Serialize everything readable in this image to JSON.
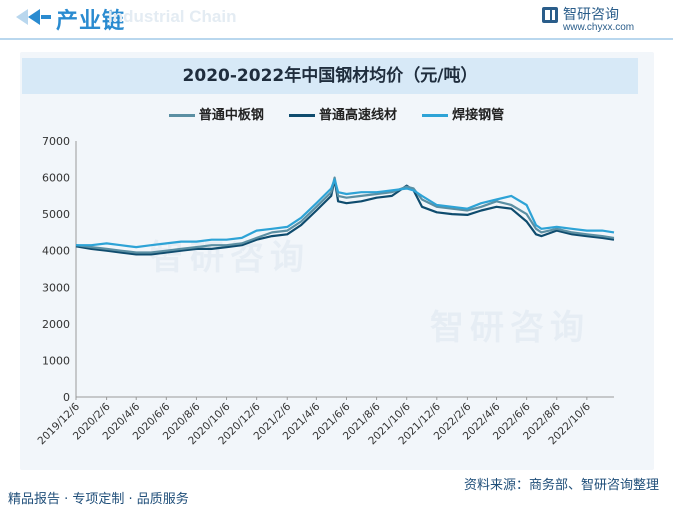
{
  "header": {
    "title": "产业链",
    "ghost_text": "Industrial Chain",
    "brand_name": "智研咨询",
    "brand_url": "www.chyxx.com"
  },
  "watermark": "智研咨询",
  "footer": {
    "left": "精品报告 · 专项定制 · 品质服务",
    "right": "资料来源：商务部、智研咨询整理"
  },
  "colors": {
    "accent": "#2a8bd0",
    "series_1": "#5b8fa3",
    "series_2": "#0f4c6e",
    "series_3": "#2ea3d6"
  },
  "chart_data": {
    "type": "line",
    "title": "2020-2022年中国钢材均价（元/吨）",
    "xlabel": "",
    "ylabel": "",
    "ylim": [
      0,
      7000
    ],
    "yticks": [
      0,
      1000,
      2000,
      3000,
      4000,
      5000,
      6000,
      7000
    ],
    "xlim": [
      "2019-12-06",
      "2022-11-30"
    ],
    "xticks": [
      "2019/12/6",
      "2020/2/6",
      "2020/4/6",
      "2020/6/6",
      "2020/8/6",
      "2020/10/6",
      "2020/12/6",
      "2021/2/6",
      "2021/4/6",
      "2021/6/6",
      "2021/8/6",
      "2021/10/6",
      "2021/12/6",
      "2022/2/6",
      "2022/4/6",
      "2022/6/6",
      "2022/8/6",
      "2022/10/6"
    ],
    "legend_position": "top-center",
    "grid": "none",
    "x": [
      "2019-12-06",
      "2020-01-06",
      "2020-02-06",
      "2020-03-06",
      "2020-04-06",
      "2020-05-06",
      "2020-06-06",
      "2020-07-06",
      "2020-08-06",
      "2020-09-06",
      "2020-10-06",
      "2020-11-06",
      "2020-12-06",
      "2021-01-06",
      "2021-02-06",
      "2021-03-06",
      "2021-04-06",
      "2021-05-06",
      "2021-05-13",
      "2021-05-20",
      "2021-06-06",
      "2021-07-06",
      "2021-08-06",
      "2021-09-06",
      "2021-10-06",
      "2021-10-20",
      "2021-11-06",
      "2021-12-06",
      "2022-01-06",
      "2022-02-06",
      "2022-03-06",
      "2022-04-06",
      "2022-05-06",
      "2022-06-06",
      "2022-06-25",
      "2022-07-06",
      "2022-08-06",
      "2022-09-06",
      "2022-10-06",
      "2022-11-06",
      "2022-11-30"
    ],
    "series": [
      {
        "name": "普通中板钢",
        "values": [
          4150,
          4100,
          4050,
          4000,
          3950,
          3950,
          4000,
          4050,
          4100,
          4150,
          4150,
          4200,
          4350,
          4500,
          4550,
          4800,
          5200,
          5600,
          6000,
          5500,
          5450,
          5500,
          5550,
          5600,
          5750,
          5700,
          5400,
          5200,
          5150,
          5100,
          5200,
          5350,
          5250,
          5000,
          4600,
          4500,
          4600,
          4500,
          4450,
          4400,
          4350
        ]
      },
      {
        "name": "普通高速线材",
        "values": [
          4120,
          4050,
          4000,
          3950,
          3900,
          3900,
          3950,
          4000,
          4050,
          4050,
          4100,
          4150,
          4300,
          4400,
          4450,
          4700,
          5100,
          5500,
          5950,
          5350,
          5300,
          5350,
          5450,
          5500,
          5780,
          5650,
          5200,
          5050,
          5000,
          4980,
          5100,
          5200,
          5150,
          4800,
          4450,
          4400,
          4550,
          4450,
          4400,
          4350,
          4300
        ]
      },
      {
        "name": "焊接钢管",
        "values": [
          4150,
          4150,
          4200,
          4150,
          4100,
          4150,
          4200,
          4250,
          4250,
          4300,
          4300,
          4350,
          4550,
          4600,
          4650,
          4900,
          5300,
          5700,
          5950,
          5600,
          5550,
          5600,
          5600,
          5650,
          5700,
          5650,
          5500,
          5250,
          5200,
          5150,
          5300,
          5400,
          5500,
          5250,
          4700,
          4600,
          4650,
          4600,
          4550,
          4550,
          4500
        ]
      }
    ]
  }
}
